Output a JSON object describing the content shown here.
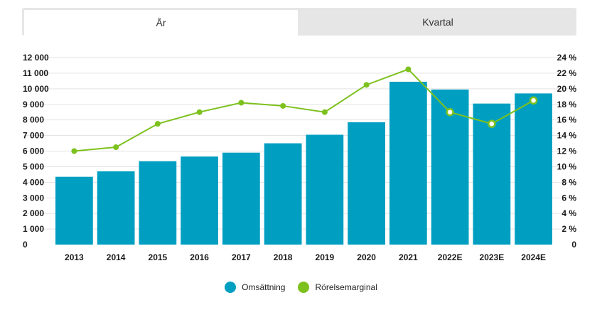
{
  "tabs": [
    {
      "label": "År",
      "active": true
    },
    {
      "label": "Kvartal",
      "active": false
    }
  ],
  "colors": {
    "bar": "#009fc2",
    "line": "#7dc11e",
    "grid": "#e3e3e3"
  },
  "chart_data": {
    "type": "bar",
    "categories": [
      "2013",
      "2014",
      "2015",
      "2016",
      "2017",
      "2018",
      "2019",
      "2020",
      "2021",
      "2022E",
      "2023E",
      "2024E"
    ],
    "series": [
      {
        "name": "Omsättning",
        "type": "bar",
        "axis": "left",
        "values": [
          4350,
          4700,
          5350,
          5650,
          5900,
          6500,
          7050,
          7850,
          10450,
          9950,
          9050,
          9700
        ]
      },
      {
        "name": "Rörelsemarginal",
        "type": "line",
        "axis": "right",
        "unit": "%",
        "values": [
          12.0,
          12.5,
          15.5,
          17.0,
          18.2,
          17.8,
          17.0,
          20.5,
          22.5,
          17.0,
          15.5,
          18.5
        ],
        "hollow_markers_from_index": 9
      }
    ],
    "y_left": {
      "ylim": [
        0,
        12000
      ],
      "ticks": [
        0,
        1000,
        2000,
        3000,
        4000,
        5000,
        6000,
        7000,
        8000,
        9000,
        10000,
        11000,
        12000
      ],
      "tick_labels": [
        "0",
        "1 000",
        "2 000",
        "3 000",
        "4 000",
        "5 000",
        "6 000",
        "7 000",
        "8 000",
        "9 000",
        "10 000",
        "11 000",
        "12 000"
      ]
    },
    "y_right": {
      "ylim": [
        0,
        24
      ],
      "ticks": [
        0,
        2,
        4,
        6,
        8,
        10,
        12,
        14,
        16,
        18,
        20,
        22,
        24
      ],
      "tick_labels": [
        "0",
        "2 %",
        "4 %",
        "6 %",
        "8 %",
        "10 %",
        "12 %",
        "14 %",
        "16 %",
        "18 %",
        "20 %",
        "22 %",
        "24 %"
      ]
    },
    "grid": true,
    "legend": "bottom-center"
  }
}
